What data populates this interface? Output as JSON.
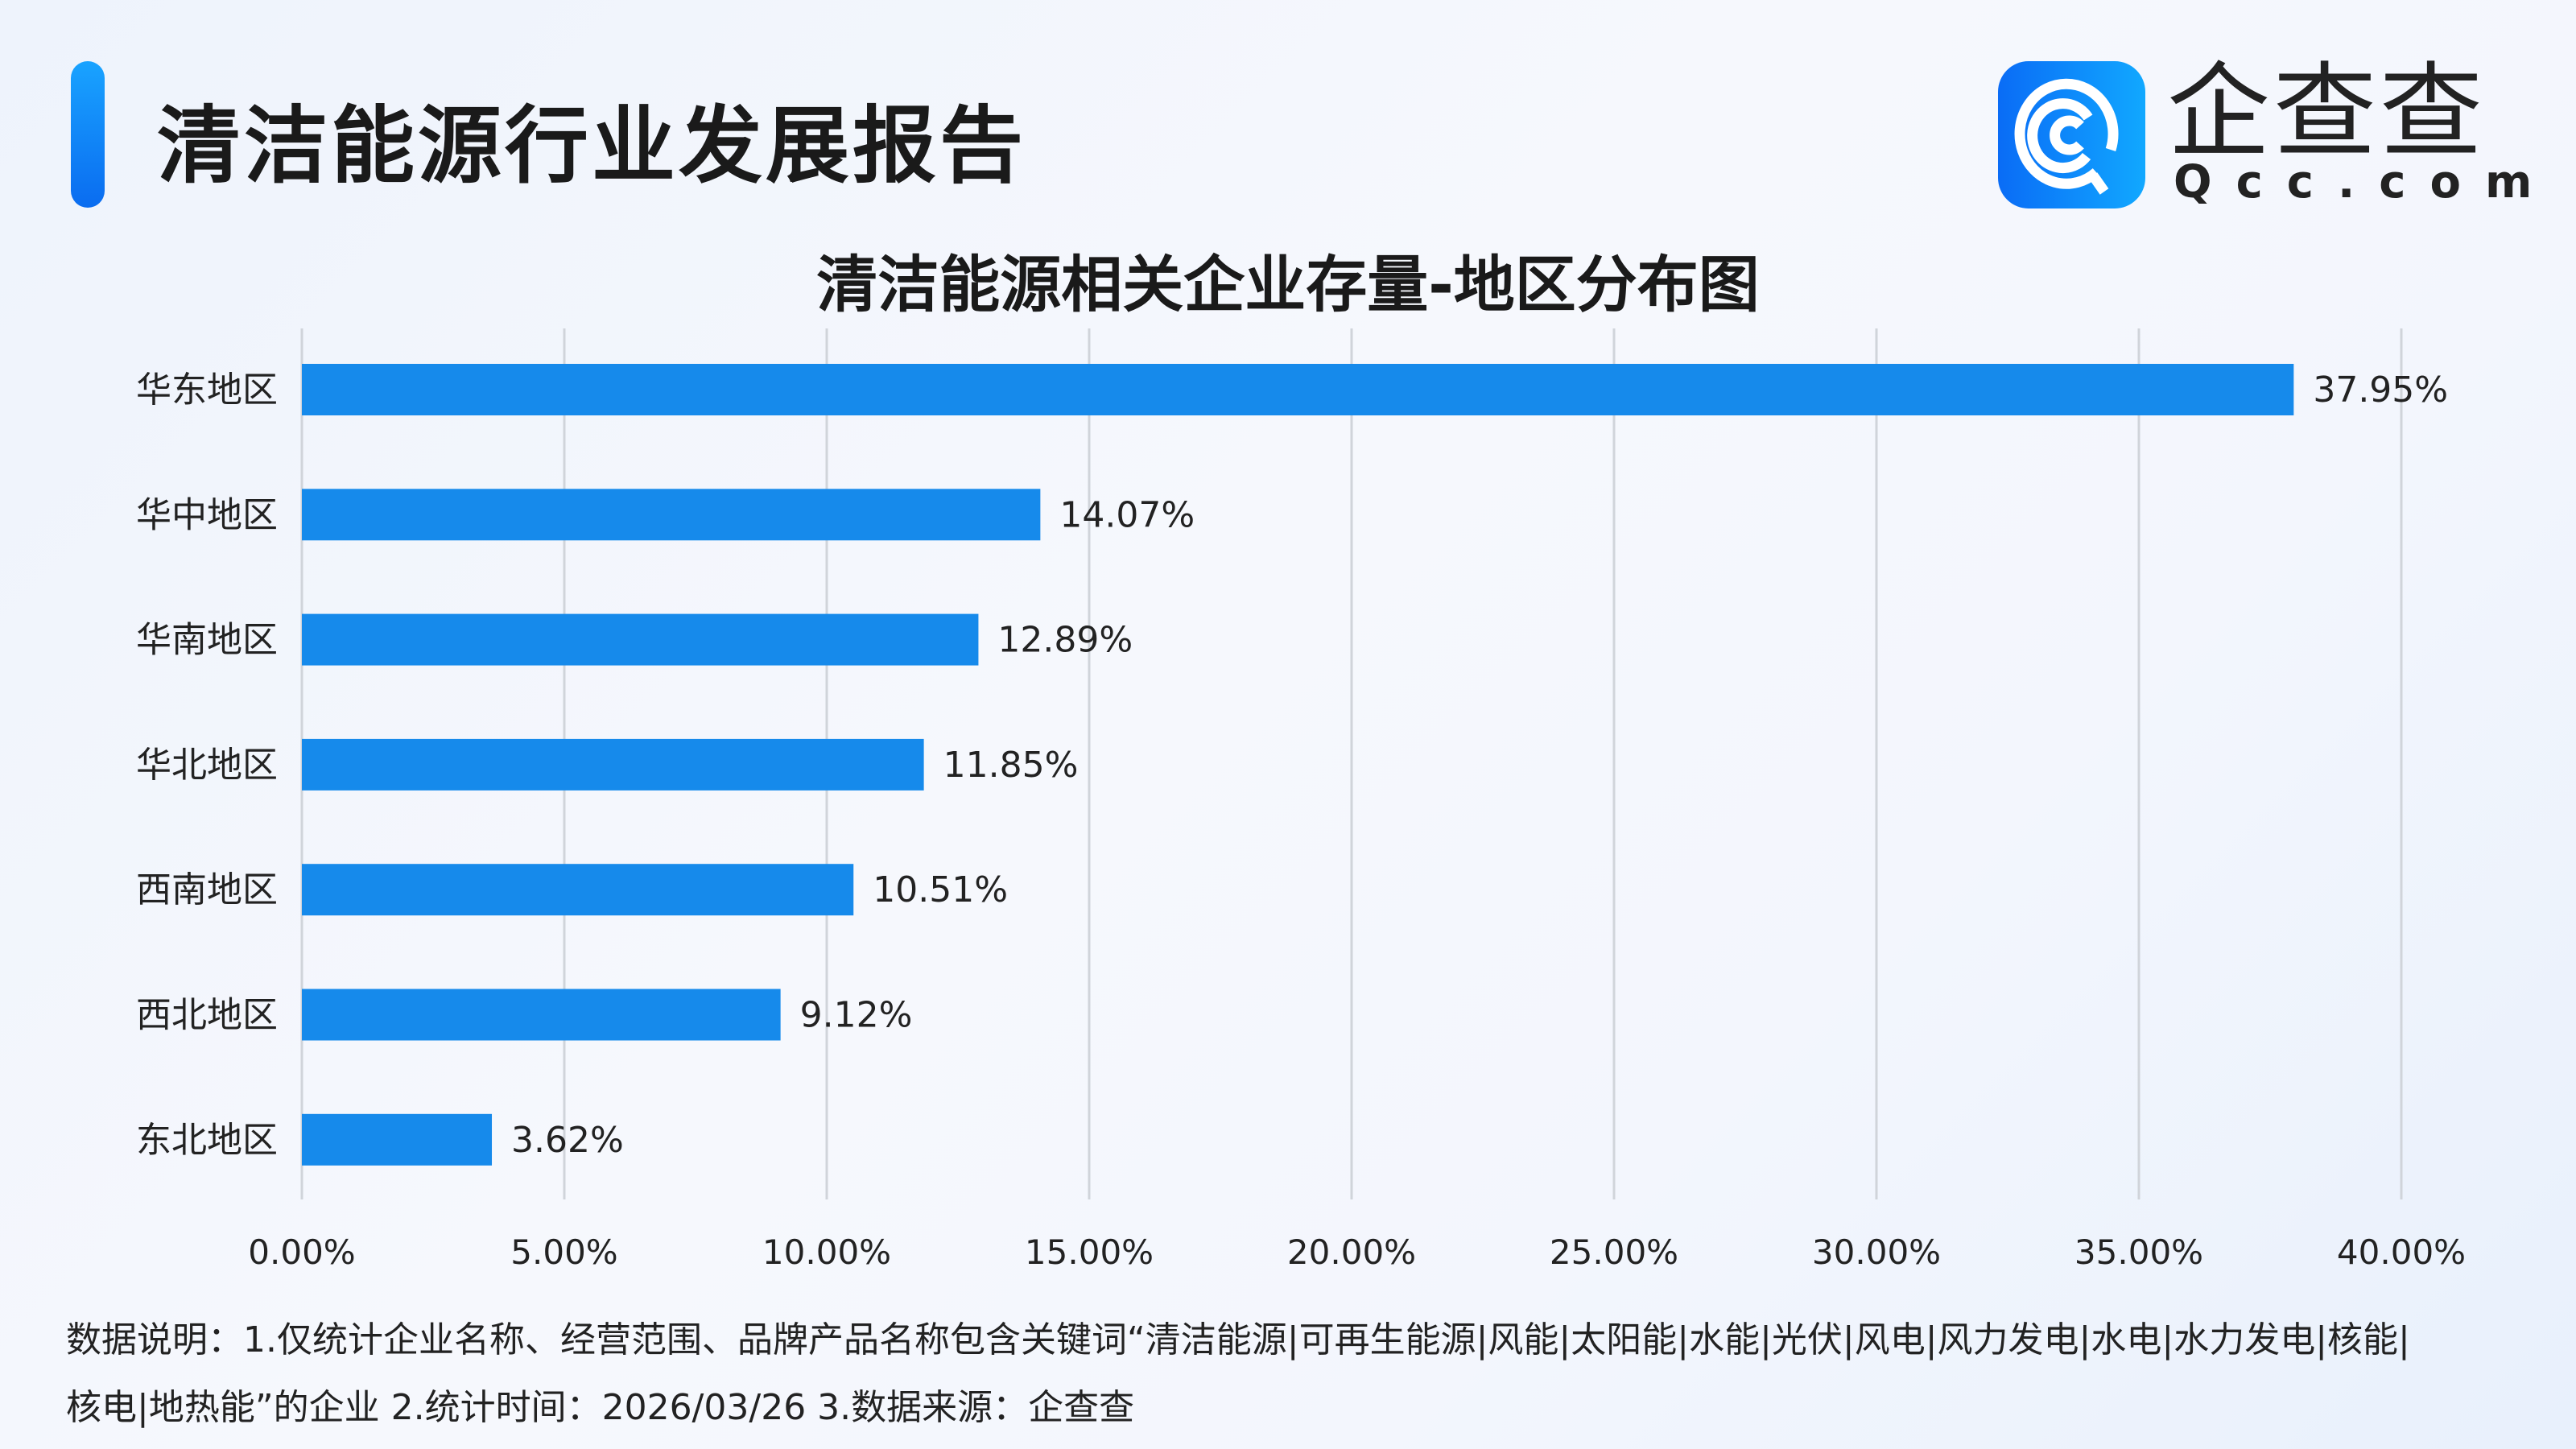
{
  "header": {
    "title": "清洁能源行业发展报告"
  },
  "logo": {
    "name_cn": "企查查",
    "name_en": "Qcc.com",
    "brand_color": "#0a84ff"
  },
  "chart_data": {
    "type": "bar",
    "orientation": "horizontal",
    "title": "清洁能源相关企业存量-地区分布图",
    "categories": [
      "华东地区",
      "华中地区",
      "华南地区",
      "华北地区",
      "西南地区",
      "西北地区",
      "东北地区"
    ],
    "values": [
      37.95,
      14.07,
      12.89,
      11.85,
      10.51,
      9.12,
      3.62
    ],
    "data_labels": [
      "37.95%",
      "14.07%",
      "12.89%",
      "11.85%",
      "10.51%",
      "9.12%",
      "3.62%"
    ],
    "xlim": [
      0,
      40
    ],
    "x_ticks": [
      "0.00%",
      "5.00%",
      "10.00%",
      "15.00%",
      "20.00%",
      "25.00%",
      "30.00%",
      "35.00%",
      "40.00%"
    ],
    "grid": "vertical",
    "bar_color": "#168aeb",
    "xlabel": "",
    "ylabel": ""
  },
  "footer": {
    "line1": "数据说明：1.仅统计企业名称、经营范围、品牌产品名称包含关键词“清洁能源|可再生能源|风能|太阳能|水能|光伏|风电|风力发电|水电|水力发电|核能|",
    "line2": "核电|地热能”的企业   2.统计时间：2026/03/26   3.数据来源：企查查"
  }
}
